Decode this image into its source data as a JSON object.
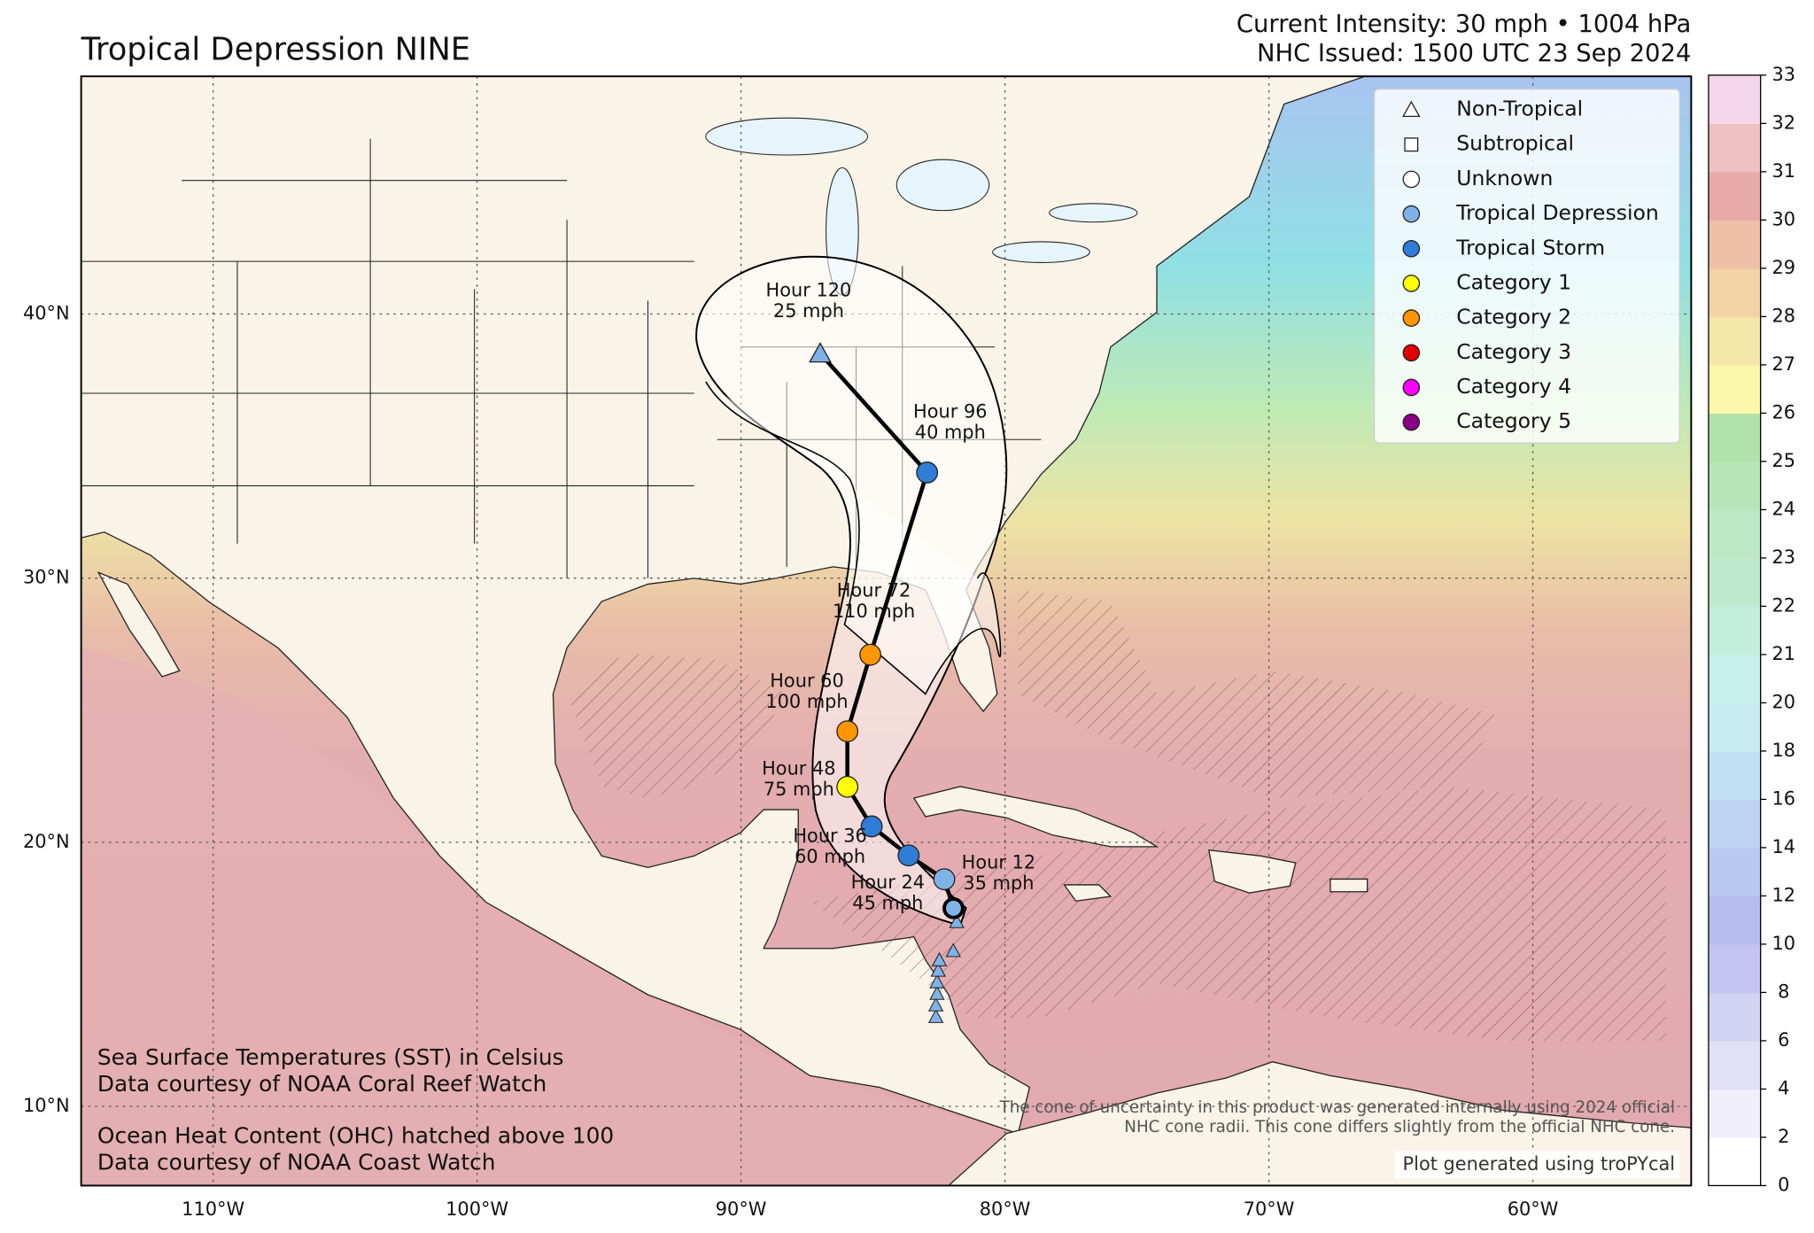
{
  "map": {
    "title": "Tropical Depression NINE",
    "intensity": "Current Intensity: 30 mph • 1004 hPa",
    "issued": "NHC Issued: 1500 UTC 23 Sep 2024",
    "xlim": [
      -115,
      -54
    ],
    "ylim": [
      7,
      49
    ],
    "xticks": [
      {
        "value": -110,
        "label": "110°W"
      },
      {
        "value": -100,
        "label": "100°W"
      },
      {
        "value": -90,
        "label": "90°W"
      },
      {
        "value": -80,
        "label": "80°W"
      },
      {
        "value": -70,
        "label": "70°W"
      },
      {
        "value": -60,
        "label": "60°W"
      }
    ],
    "yticks": [
      {
        "value": 10,
        "label": "10°N"
      },
      {
        "value": 20,
        "label": "20°N"
      },
      {
        "value": 30,
        "label": "30°N"
      },
      {
        "value": 40,
        "label": "40°N"
      }
    ],
    "grid": true,
    "legend": [
      {
        "label": "Non-Tropical",
        "marker": "triangle",
        "color": "none"
      },
      {
        "label": "Subtropical",
        "marker": "square",
        "color": "none"
      },
      {
        "label": "Unknown",
        "marker": "circle",
        "color": "none"
      },
      {
        "label": "Tropical Depression",
        "marker": "circle",
        "color": "#7fb3e8"
      },
      {
        "label": "Tropical Storm",
        "marker": "circle",
        "color": "#2f7dd6"
      },
      {
        "label": "Category 1",
        "marker": "circle",
        "color": "#ffff00"
      },
      {
        "label": "Category 2",
        "marker": "circle",
        "color": "#ff9600"
      },
      {
        "label": "Category 3",
        "marker": "circle",
        "color": "#e00000"
      },
      {
        "label": "Category 4",
        "marker": "circle",
        "color": "#ff00ff"
      },
      {
        "label": "Category 5",
        "marker": "circle",
        "color": "#8b0088"
      }
    ],
    "current_position": {
      "lon": -81.95,
      "lat": 17.5,
      "color": "#7fb3e8"
    },
    "track": [
      {
        "hour": "Hour 12",
        "wind": "35 mph",
        "lon": -82.3,
        "lat": 18.6,
        "marker": "circle",
        "color": "#7fb3e8"
      },
      {
        "hour": "Hour 24",
        "wind": "45 mph",
        "lon": -83.65,
        "lat": 19.5,
        "marker": "circle",
        "color": "#2f7dd6"
      },
      {
        "hour": "Hour 36",
        "wind": "60 mph",
        "lon": -85.05,
        "lat": 20.6,
        "marker": "circle",
        "color": "#2f7dd6"
      },
      {
        "hour": "Hour 48",
        "wind": "75 mph",
        "lon": -85.97,
        "lat": 22.1,
        "marker": "circle",
        "color": "#ffff00"
      },
      {
        "hour": "Hour 60",
        "wind": "100 mph",
        "lon": -85.97,
        "lat": 24.2,
        "marker": "circle",
        "color": "#ff9600"
      },
      {
        "hour": "Hour 72",
        "wind": "110 mph",
        "lon": -85.1,
        "lat": 27.1,
        "marker": "circle",
        "color": "#ff9600"
      },
      {
        "hour": "Hour 96",
        "wind": "40 mph",
        "lon": -82.95,
        "lat": 34.0,
        "marker": "circle",
        "color": "#2f7dd6"
      },
      {
        "hour": "Hour 120",
        "wind": "25 mph",
        "lon": -87.0,
        "lat": 38.5,
        "marker": "triangle",
        "color": "#7fb3e8"
      }
    ],
    "colorbar": {
      "ticks": [
        0,
        2,
        4,
        6,
        8,
        10,
        12,
        14,
        16,
        18,
        20,
        21,
        22,
        23,
        24,
        25,
        26,
        27,
        28,
        29,
        30,
        31,
        32,
        33
      ],
      "colors": [
        "#ffffff",
        "#f0eefa",
        "#e2e0f6",
        "#d2d2f2",
        "#c4c4f0",
        "#b6bcee",
        "#b8c8f0",
        "#bcd4f2",
        "#c2e0f4",
        "#c8ecf2",
        "#c8f0ea",
        "#c4eedc",
        "#bfe9cf",
        "#bde8c4",
        "#b8e6b8",
        "#b2e2ac",
        "#f8f8a8",
        "#f4e6a8",
        "#f2d4a4",
        "#eebfa6",
        "#e8aaa6",
        "#eec0c0",
        "#f6d6ea"
      ]
    },
    "notes": [
      "Sea Surface Temperatures (SST) in Celsius",
      "Data courtesy of NOAA Coral Reef Watch",
      "Ocean Heat Content (OHC) hatched above 100",
      "Data courtesy of NOAA Coast Watch"
    ],
    "disclaimer": [
      "The cone of uncertainty in this product was generated internally using 2024 official",
      "NHC cone radii. This cone differs slightly from the official NHC cone."
    ],
    "credit": "Plot generated using troPYcal"
  }
}
